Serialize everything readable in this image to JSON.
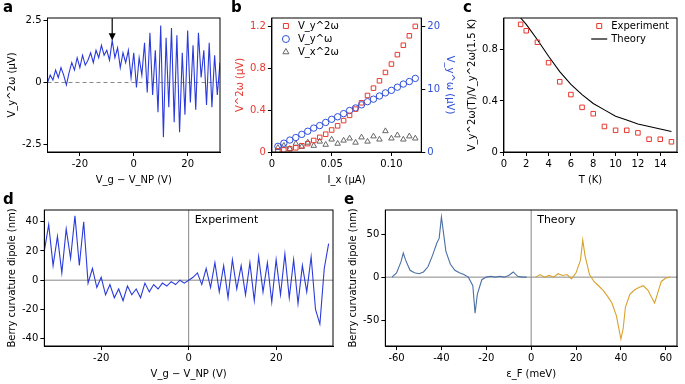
{
  "chart_data": [
    {
      "panel": "a",
      "type": "line",
      "x_label": "V_g − V_NP (V)",
      "y_label": "V_y^2ω (μV)",
      "xlim": [
        -32,
        32
      ],
      "xticks": [
        -20,
        0,
        20
      ],
      "ylim": [
        -2.8,
        2.6
      ],
      "yticks": [
        -2.5,
        0,
        2.5
      ],
      "grid": false,
      "annotations": [
        {
          "type": "arrow",
          "x": -8,
          "y": 1.7
        }
      ],
      "series": [
        {
          "color": "#2b3bdb",
          "x": [
            -32,
            -31,
            -30,
            -29,
            -28,
            -27,
            -26,
            -25,
            -24,
            -23,
            -22,
            -21,
            -20,
            -19,
            -18,
            -17,
            -16,
            -15,
            -14,
            -13,
            -12,
            -11,
            -10,
            -9,
            -8,
            -7,
            -6,
            -5,
            -4,
            -3,
            -2,
            -1,
            0,
            1,
            2,
            3,
            4,
            5,
            6,
            7,
            8,
            9,
            10,
            11,
            12,
            13,
            14,
            15,
            16,
            17,
            18,
            19,
            20,
            21,
            22,
            23,
            24,
            25,
            26,
            27,
            28,
            29,
            30,
            31,
            32
          ],
          "values": [
            0,
            0.3,
            0.1,
            0.5,
            0.2,
            0.6,
            0.3,
            -0.1,
            0.4,
            0.8,
            0.5,
            1.0,
            0.6,
            1.1,
            0.7,
            0.9,
            1.2,
            0.8,
            1.3,
            1.0,
            1.5,
            1.1,
            1.3,
            0.9,
            1.7,
            1.0,
            1.4,
            0.6,
            1.2,
            0.8,
            1.3,
            0.2,
            1.2,
            -0.2,
            1.0,
            0.3,
            1.6,
            -0.4,
            2.0,
            -0.5,
            1.3,
            -1.2,
            2.3,
            -2.2,
            1.8,
            -1.0,
            2.2,
            -1.6,
            1.9,
            -2.0,
            1.2,
            -1.3,
            2.1,
            -0.8,
            1.5,
            -1.1,
            2.0,
            0.2,
            1.3,
            -0.9,
            1.6,
            -1.0,
            1.1,
            -0.5,
            0.8
          ]
        }
      ]
    },
    {
      "panel": "b",
      "type": "scatter",
      "x_label": "I_x (μA)",
      "y_label": "V^2ω (μV)",
      "y2_label": "V_y^ω (μV)",
      "xlim": [
        0,
        0.125
      ],
      "xticks": [
        0,
        0.05,
        {
          "value": 0.1,
          "label": "0.10"
        }
      ],
      "ylim": [
        0,
        1.28
      ],
      "yticks": [
        0,
        0.4,
        0.8,
        1.2
      ],
      "y2lim": [
        0,
        21.3
      ],
      "y2ticks": [
        0,
        10,
        20
      ],
      "grid": false,
      "legend": "upper left",
      "series": [
        {
          "name": "V_y^2ω",
          "color": "#e8382f",
          "marker": "square",
          "x": [
            0.005,
            0.01,
            0.015,
            0.02,
            0.025,
            0.03,
            0.035,
            0.04,
            0.045,
            0.05,
            0.055,
            0.06,
            0.065,
            0.07,
            0.075,
            0.08,
            0.085,
            0.09,
            0.095,
            0.1,
            0.105,
            0.11,
            0.115,
            0.12
          ],
          "values": [
            0.01,
            0.02,
            0.03,
            0.04,
            0.06,
            0.08,
            0.11,
            0.14,
            0.17,
            0.21,
            0.25,
            0.3,
            0.35,
            0.41,
            0.47,
            0.54,
            0.61,
            0.68,
            0.76,
            0.84,
            0.93,
            1.02,
            1.11,
            1.2
          ]
        },
        {
          "name": "V_y^ω",
          "color": "#2f4fd8",
          "marker": "circle",
          "axis": "y2",
          "x": [
            0.005,
            0.01,
            0.015,
            0.02,
            0.025,
            0.03,
            0.035,
            0.04,
            0.045,
            0.05,
            0.055,
            0.06,
            0.065,
            0.07,
            0.075,
            0.08,
            0.085,
            0.09,
            0.095,
            0.1,
            0.105,
            0.11,
            0.115,
            0.12
          ],
          "values": [
            0.9,
            1.4,
            1.9,
            2.3,
            2.8,
            3.3,
            3.8,
            4.2,
            4.7,
            5.2,
            5.6,
            6.1,
            6.6,
            7.0,
            7.5,
            8.0,
            8.4,
            8.9,
            9.4,
            9.8,
            10.3,
            10.8,
            11.2,
            11.7
          ]
        },
        {
          "name": "V_x^2ω",
          "color": "#666666",
          "marker": "triangle",
          "x": [
            0.005,
            0.01,
            0.015,
            0.02,
            0.025,
            0.03,
            0.035,
            0.04,
            0.045,
            0.05,
            0.055,
            0.06,
            0.065,
            0.07,
            0.075,
            0.08,
            0.085,
            0.09,
            0.095,
            0.1,
            0.105,
            0.11,
            0.115,
            0.12
          ],
          "values": [
            0.04,
            0.06,
            0.03,
            0.08,
            0.05,
            0.09,
            0.06,
            0.1,
            0.07,
            0.12,
            0.08,
            0.11,
            0.13,
            0.09,
            0.14,
            0.1,
            0.15,
            0.12,
            0.2,
            0.13,
            0.16,
            0.12,
            0.15,
            0.13
          ]
        }
      ]
    },
    {
      "panel": "c",
      "type": "scatter",
      "x_label": "T (K)",
      "y_label": "V_y^2ω(T)/V_y^2ω(1.5 K)",
      "xlim": [
        0,
        15.5
      ],
      "xticks": [
        0,
        2,
        4,
        6,
        8,
        10,
        12,
        14
      ],
      "ylim": [
        0,
        1.05
      ],
      "yticks": [
        0,
        0.4,
        0.8
      ],
      "grid": false,
      "legend": "upper right",
      "series": [
        {
          "name": "Experiment",
          "type": "scatter",
          "color": "#e8382f",
          "marker": "square",
          "x": [
            1.5,
            2,
            3,
            4,
            5,
            6,
            7,
            8,
            9,
            10,
            11,
            12,
            13,
            14,
            15
          ],
          "values": [
            1.0,
            0.95,
            0.86,
            0.7,
            0.55,
            0.45,
            0.35,
            0.3,
            0.2,
            0.17,
            0.17,
            0.15,
            0.1,
            0.1,
            0.08
          ]
        },
        {
          "name": "Theory",
          "type": "line",
          "color": "#000000",
          "line_style": "solid",
          "x": [
            1.5,
            2,
            3,
            4,
            5,
            6,
            7,
            8,
            9,
            10,
            11,
            12,
            13,
            14,
            15
          ],
          "values": [
            1.05,
            1.0,
            0.88,
            0.75,
            0.63,
            0.53,
            0.45,
            0.38,
            0.33,
            0.28,
            0.25,
            0.22,
            0.2,
            0.18,
            0.16
          ]
        }
      ]
    },
    {
      "panel": "d",
      "type": "line",
      "x_label": "V_g − V_NP (V)",
      "y_label": "Berry curvature dipole (nm)",
      "xlim": [
        -33,
        33
      ],
      "xticks": [
        -20,
        0,
        20
      ],
      "ylim": [
        -45,
        48
      ],
      "yticks": [
        -40,
        -20,
        0,
        20,
        40
      ],
      "grid": false,
      "annotations": [
        {
          "type": "text",
          "text": "Experiment"
        }
      ],
      "series": [
        {
          "color": "#2b3bdb",
          "x": [
            -33,
            -32,
            -31,
            -30,
            -29,
            -28,
            -27,
            -26,
            -25,
            -24,
            -23,
            -22,
            -21,
            -20,
            -19,
            -18,
            -17,
            -16,
            -15,
            -14,
            -13,
            -12,
            -11,
            -10,
            -9,
            -8,
            -7,
            -6,
            -5,
            -4,
            -3,
            -2,
            -1,
            0,
            1,
            2,
            3,
            4,
            5,
            6,
            7,
            8,
            9,
            10,
            11,
            12,
            13,
            14,
            15,
            16,
            17,
            18,
            19,
            20,
            21,
            22,
            23,
            24,
            25,
            26,
            27,
            28,
            29,
            30,
            31,
            32
          ],
          "values": [
            20,
            38,
            10,
            30,
            5,
            35,
            15,
            44,
            10,
            40,
            -2,
            8,
            -5,
            2,
            -10,
            -3,
            -12,
            -6,
            -14,
            -4,
            -10,
            -6,
            -12,
            -2,
            -8,
            -3,
            -6,
            -2,
            -4,
            -1,
            -3,
            0,
            -2,
            0,
            2,
            5,
            -3,
            8,
            -5,
            12,
            -8,
            10,
            -12,
            14,
            -6,
            10,
            -10,
            12,
            -14,
            16,
            -8,
            12,
            -15,
            14,
            -10,
            18,
            -12,
            14,
            -16,
            10,
            -8,
            16,
            -20,
            -30,
            8,
            25
          ]
        }
      ]
    },
    {
      "panel": "e",
      "type": "line",
      "x_label": "ε_F (meV)",
      "y_label": "Berry curvature dipole (nm)",
      "xlim": [
        -65,
        65
      ],
      "xticks": [
        -60,
        -40,
        -20,
        0,
        20,
        40,
        60
      ],
      "ylim": [
        -80,
        78
      ],
      "yticks": [
        -50,
        0,
        50
      ],
      "grid": false,
      "annotations": [
        {
          "type": "text",
          "text": "Theory"
        }
      ],
      "series": [
        {
          "color": "#4a6fa5",
          "x": [
            -62,
            -60,
            -58,
            -57,
            -56,
            -54,
            -52,
            -50,
            -48,
            -46,
            -44,
            -42,
            -41,
            -40,
            -39,
            -38,
            -36,
            -34,
            -32,
            -30,
            -28,
            -26,
            -25,
            -24,
            -22,
            -20,
            -18,
            -16,
            -14,
            -12,
            -10,
            -8,
            -6,
            -4,
            -2
          ],
          "values": [
            0,
            5,
            18,
            28,
            20,
            8,
            5,
            4,
            6,
            12,
            25,
            40,
            45,
            70,
            50,
            30,
            15,
            8,
            5,
            3,
            0,
            -10,
            -42,
            -20,
            -3,
            0,
            1,
            0,
            1,
            0,
            2,
            6,
            1,
            0,
            0
          ]
        },
        {
          "color": "#d9a12a",
          "x": [
            2,
            4,
            6,
            8,
            10,
            12,
            14,
            16,
            18,
            20,
            22,
            23,
            24,
            26,
            28,
            30,
            32,
            34,
            36,
            38,
            40,
            41,
            42,
            44,
            46,
            48,
            50,
            52,
            54,
            55,
            56,
            58,
            60,
            62
          ],
          "values": [
            0,
            3,
            0,
            2,
            0,
            4,
            2,
            3,
            -2,
            5,
            20,
            43,
            25,
            3,
            -5,
            -10,
            -15,
            -22,
            -30,
            -45,
            -72,
            -60,
            -35,
            -20,
            -15,
            -12,
            -10,
            -15,
            -25,
            -30,
            -22,
            -5,
            -1,
            0
          ]
        }
      ]
    }
  ]
}
